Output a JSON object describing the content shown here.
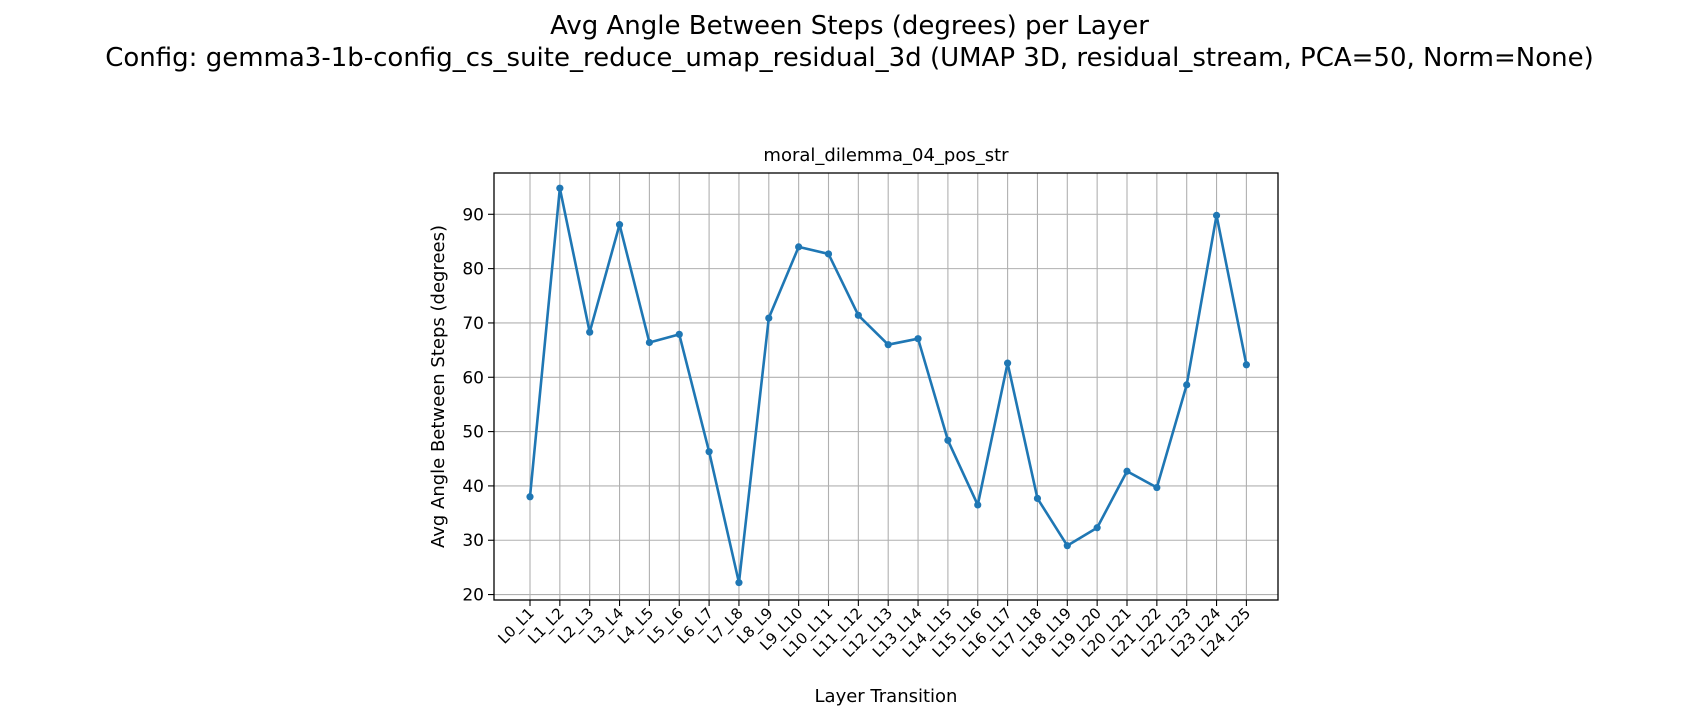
{
  "figure": {
    "title_line1": "Avg Angle Between Steps (degrees) per Layer",
    "title_line2": "Config: gemma3-1b-config_cs_suite_reduce_umap_residual_3d (UMAP 3D, residual_stream, PCA=50, Norm=None)"
  },
  "chart_data": {
    "type": "line",
    "title": "moral_dilemma_04_pos_str",
    "xlabel": "Layer Transition",
    "ylabel": "Avg Angle Between Steps (degrees)",
    "categories": [
      "L0_L1",
      "L1_L2",
      "L2_L3",
      "L3_L4",
      "L4_L5",
      "L5_L6",
      "L6_L7",
      "L7_L8",
      "L8_L9",
      "L9_L10",
      "L10_L11",
      "L11_L12",
      "L12_L13",
      "L13_L14",
      "L14_L15",
      "L15_L16",
      "L16_L17",
      "L17_L18",
      "L18_L19",
      "L19_L20",
      "L20_L21",
      "L21_L22",
      "L22_L23",
      "L23_L24",
      "L24_L25"
    ],
    "series": [
      {
        "values": [
          38.0,
          94.8,
          68.3,
          88.1,
          66.4,
          67.9,
          46.3,
          22.2,
          70.9,
          84.0,
          82.7,
          71.4,
          66.0,
          67.1,
          48.4,
          36.5,
          62.6,
          37.7,
          29.0,
          32.3,
          42.7,
          39.7,
          58.6,
          89.8,
          62.3
        ],
        "color": "#1f77b4"
      }
    ],
    "ylim": [
      19.0,
      97.6
    ],
    "yticks": [
      20,
      30,
      40,
      50,
      60,
      70,
      80,
      90
    ],
    "grid": true,
    "marker": "circle"
  }
}
